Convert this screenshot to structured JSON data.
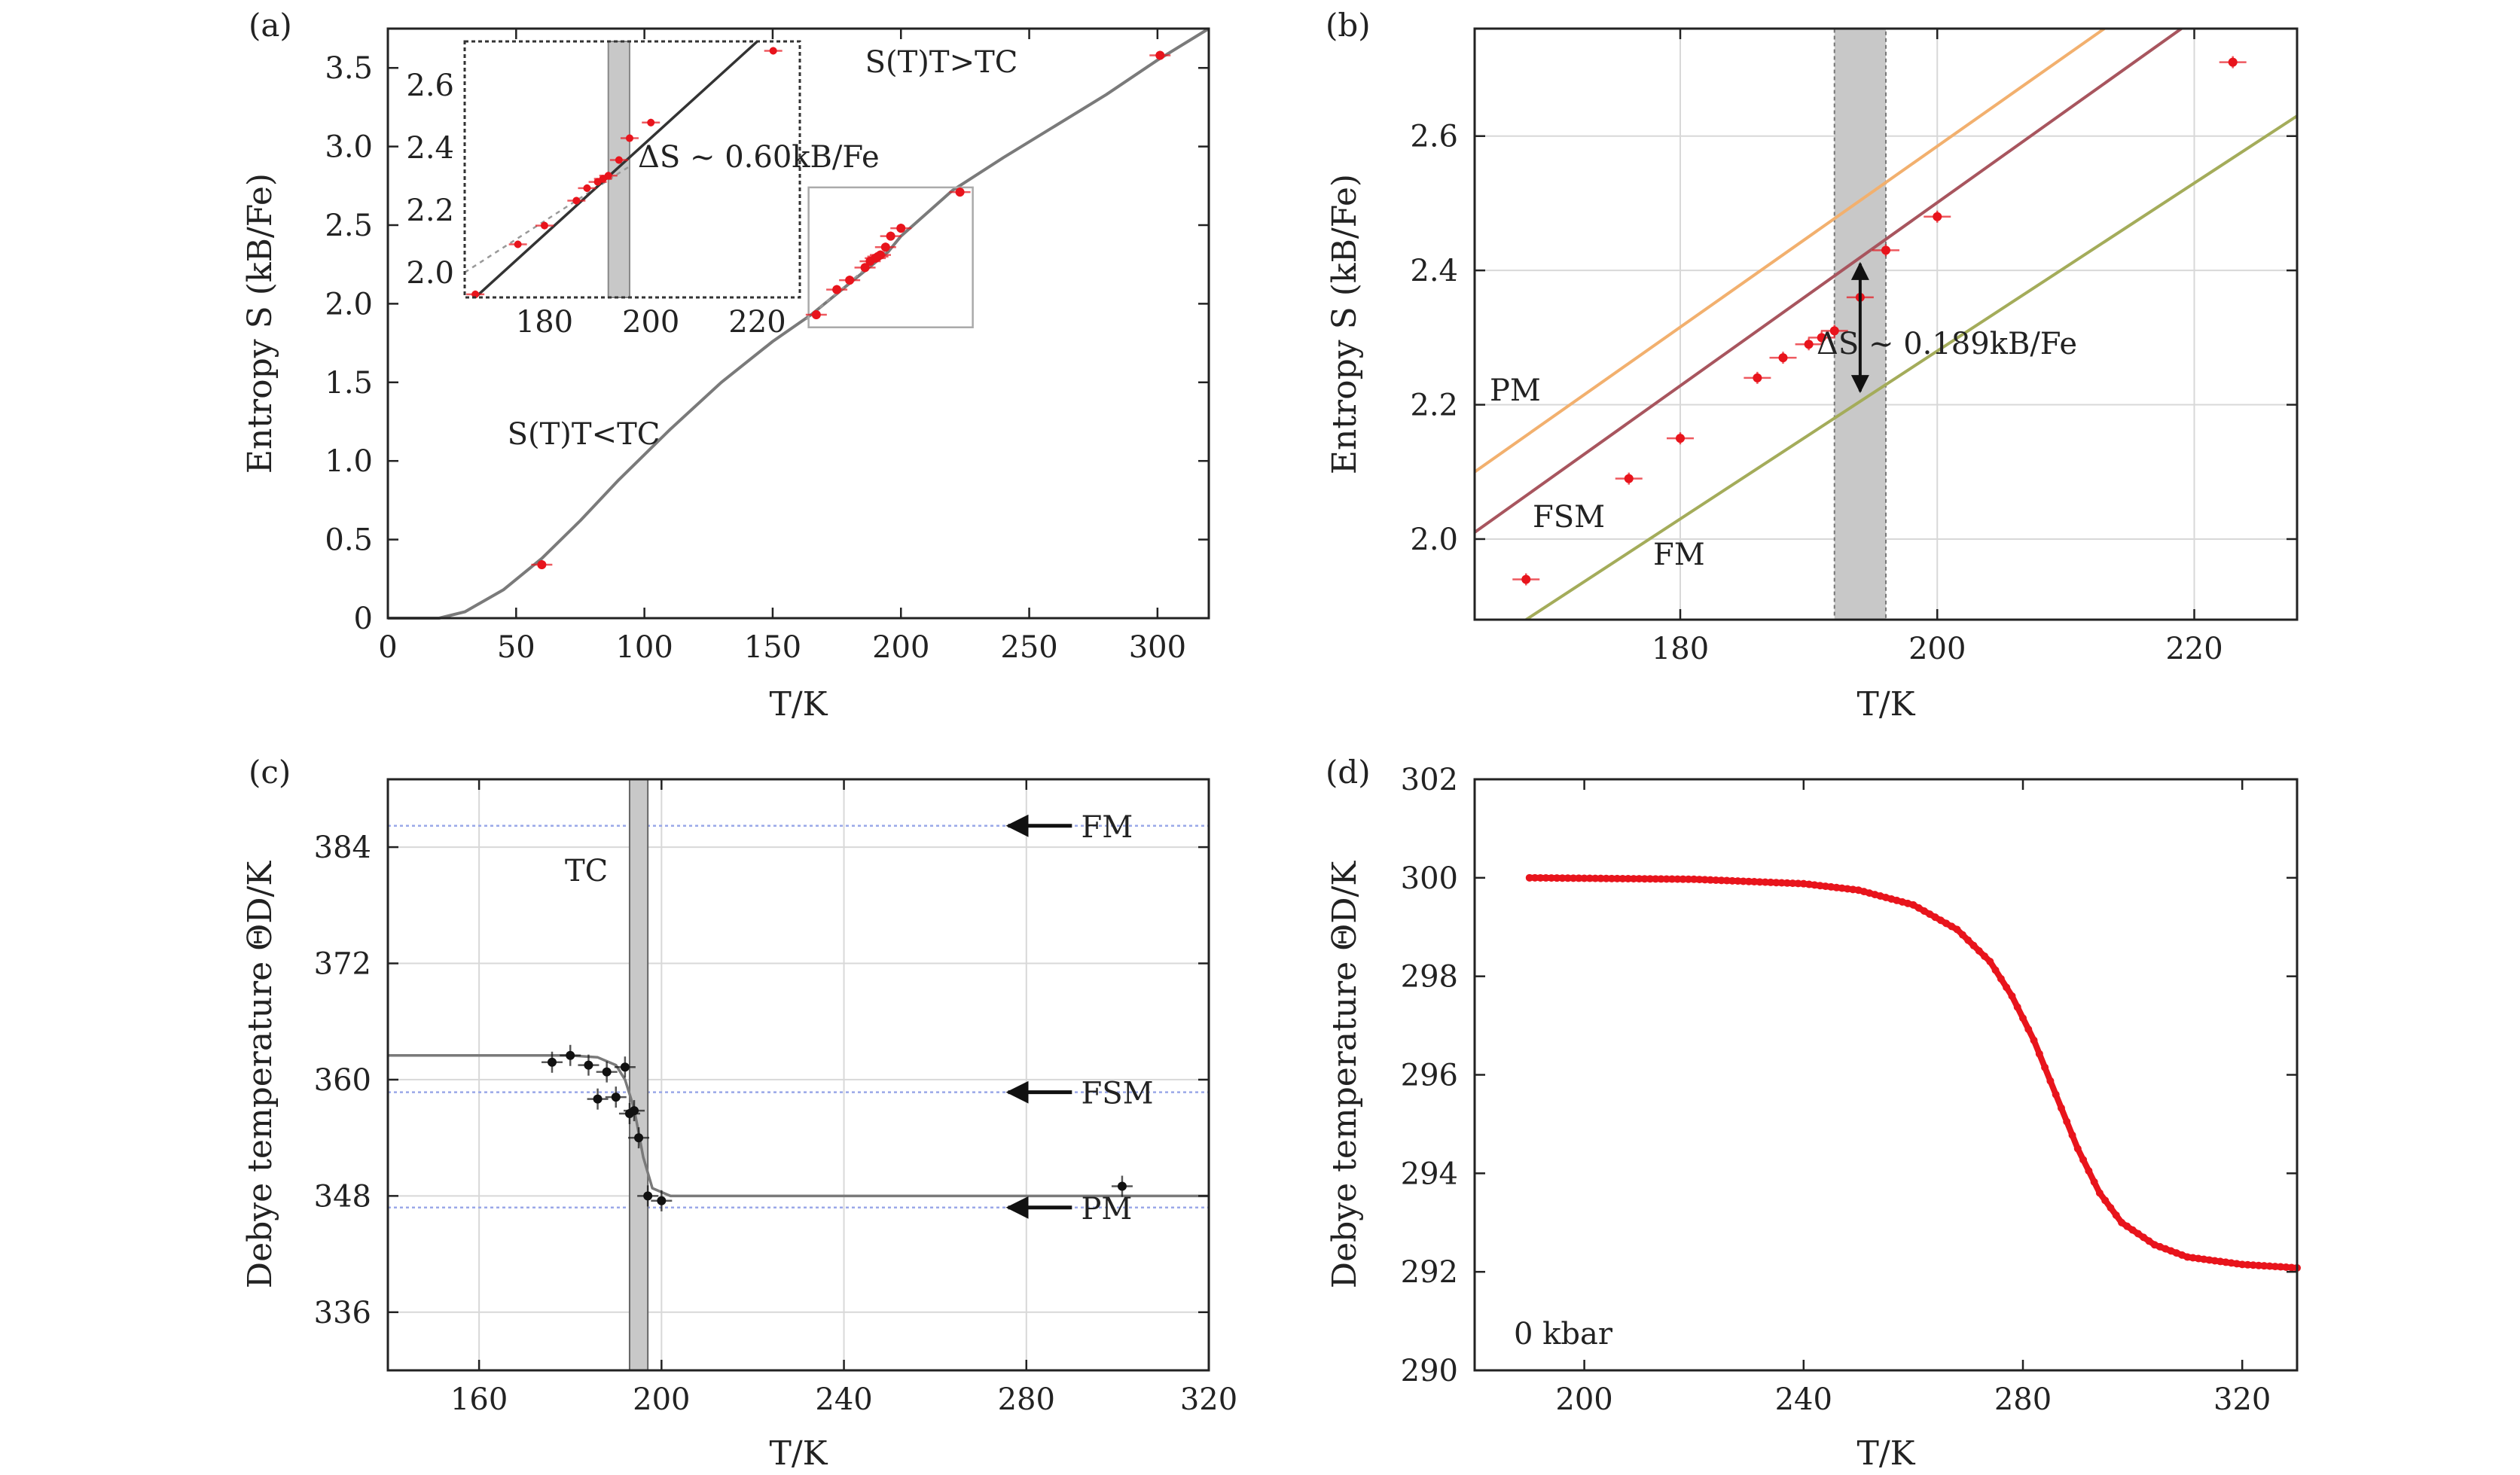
{
  "chart_data": [
    {
      "panel": "(a)",
      "type": "line",
      "xlabel": "T/K",
      "ylabel": "Entropy S (kB/Fe)",
      "xlim": [
        0,
        320
      ],
      "ylim": [
        0,
        3.75
      ],
      "xticks": [
        "0",
        "50",
        "100",
        "150",
        "200",
        "250",
        "300"
      ],
      "yticks": [
        "0",
        "0.5",
        "1.0",
        "1.5",
        "2.0",
        "2.5",
        "3.0",
        "3.5"
      ],
      "series": [
        {
          "values": [
            [
              0,
              0
            ],
            [
              20,
              0.0
            ],
            [
              30,
              0.04
            ],
            [
              45,
              0.18
            ],
            [
              60,
              0.38
            ],
            [
              75,
              0.62
            ],
            [
              90,
              0.88
            ],
            [
              110,
              1.2
            ],
            [
              130,
              1.5
            ],
            [
              150,
              1.76
            ],
            [
              165,
              1.93
            ],
            [
              180,
              2.13
            ],
            [
              195,
              2.33
            ],
            [
              200,
              2.43
            ],
            [
              220,
              2.72
            ],
            [
              240,
              2.93
            ],
            [
              260,
              3.13
            ],
            [
              280,
              3.33
            ],
            [
              300,
              3.55
            ],
            [
              320,
              3.75
            ]
          ]
        }
      ],
      "points": [
        [
          60,
          0.34
        ],
        [
          167,
          1.93
        ],
        [
          175,
          2.09
        ],
        [
          180,
          2.15
        ],
        [
          186,
          2.23
        ],
        [
          188,
          2.27
        ],
        [
          190,
          2.29
        ],
        [
          191,
          2.3
        ],
        [
          192,
          2.31
        ],
        [
          194,
          2.36
        ],
        [
          196,
          2.43
        ],
        [
          200,
          2.48
        ],
        [
          223,
          2.71
        ],
        [
          301,
          3.58
        ]
      ],
      "annotations": [
        "S(T)T>TC",
        "S(T)T<TC"
      ],
      "inset": {
        "xlim": [
          165,
          228
        ],
        "ylim": [
          1.92,
          2.74
        ],
        "xticks": [
          "180",
          "200",
          "220"
        ],
        "yticks": [
          "2.0",
          "2.2",
          "2.4",
          "2.6"
        ],
        "annotation": "ΔS ~ 0.60kB/Fe",
        "band": [
          192,
          196
        ]
      }
    },
    {
      "panel": "(b)",
      "type": "line",
      "xlabel": "T/K",
      "ylabel": "Entropy S (kB/Fe)",
      "xlim": [
        164,
        228
      ],
      "ylim": [
        1.88,
        2.76
      ],
      "xticks": [
        "180",
        "200",
        "220"
      ],
      "yticks": [
        "2.0",
        "2.2",
        "2.4",
        "2.6"
      ],
      "series": [
        {
          "name": "PM",
          "color": "#f2b06e",
          "values": [
            [
              164,
              2.1
            ],
            [
              213,
              2.76
            ]
          ]
        },
        {
          "name": "FSM",
          "color": "#a8555e",
          "values": [
            [
              164,
              2.01
            ],
            [
              219,
              2.76
            ]
          ]
        },
        {
          "name": "FM",
          "color": "#a4ac5a",
          "values": [
            [
              168,
              1.88
            ],
            [
              228,
              2.63
            ]
          ]
        }
      ],
      "points": [
        [
          168,
          1.94
        ],
        [
          176,
          2.09
        ],
        [
          180,
          2.15
        ],
        [
          186,
          2.24
        ],
        [
          188,
          2.27
        ],
        [
          190,
          2.29
        ],
        [
          191,
          2.3
        ],
        [
          192,
          2.31
        ],
        [
          194,
          2.36
        ],
        [
          196,
          2.43
        ],
        [
          200,
          2.48
        ],
        [
          223,
          2.71
        ]
      ],
      "band": [
        192,
        196
      ],
      "arrow": [
        2.22,
        2.41
      ],
      "annotation": "ΔS ~ 0.189kB/Fe"
    },
    {
      "panel": "(c)",
      "type": "line",
      "xlabel": "T/K",
      "ylabel": "Debye temperature ΘD/K",
      "xlim": [
        140,
        320
      ],
      "ylim": [
        330,
        391
      ],
      "xticks": [
        "160",
        "200",
        "240",
        "280",
        "320"
      ],
      "yticks": [
        "336",
        "348",
        "360",
        "372",
        "384"
      ],
      "series": [
        {
          "values": [
            [
              140,
              362.5
            ],
            [
              180,
              362.5
            ],
            [
              186,
              362.3
            ],
            [
              190,
              361.5
            ],
            [
              192,
              360
            ],
            [
              194,
              357
            ],
            [
              196,
              352
            ],
            [
              198,
              348.8
            ],
            [
              202,
              348
            ],
            [
              320,
              348
            ]
          ]
        }
      ],
      "points": [
        [
          176,
          361.8
        ],
        [
          180,
          362.5
        ],
        [
          184,
          361.5
        ],
        [
          186,
          358
        ],
        [
          188,
          360.8
        ],
        [
          190,
          358.2
        ],
        [
          192,
          361.3
        ],
        [
          193,
          356.5
        ],
        [
          194,
          356.8
        ],
        [
          195,
          354
        ],
        [
          197,
          348
        ],
        [
          200,
          347.5
        ],
        [
          301,
          349
        ]
      ],
      "references": [
        {
          "label": "FM",
          "value": 386.2
        },
        {
          "label": "FSM",
          "value": 358.7
        },
        {
          "label": "PM",
          "value": 346.8
        }
      ],
      "band_label": "TC",
      "band": [
        193,
        197
      ]
    },
    {
      "panel": "(d)",
      "type": "line",
      "xlabel": "T/K",
      "ylabel": "Debye temperature ΘD/K",
      "xlim": [
        180,
        330
      ],
      "ylim": [
        290,
        302
      ],
      "xticks": [
        "200",
        "240",
        "280",
        "320"
      ],
      "yticks": [
        "290",
        "292",
        "294",
        "296",
        "298",
        "300",
        "302"
      ],
      "series": [
        {
          "color": "#e8141c",
          "values": [
            [
              190,
              300.0
            ],
            [
              220,
              299.97
            ],
            [
              240,
              299.88
            ],
            [
              250,
              299.75
            ],
            [
              260,
              299.45
            ],
            [
              268,
              298.95
            ],
            [
              274,
              298.3
            ],
            [
              278,
              297.6
            ],
            [
              282,
              296.7
            ],
            [
              286,
              295.6
            ],
            [
              290,
              294.5
            ],
            [
              294,
              293.6
            ],
            [
              298,
              293.0
            ],
            [
              304,
              292.55
            ],
            [
              310,
              292.3
            ],
            [
              320,
              292.15
            ],
            [
              330,
              292.08
            ]
          ]
        }
      ],
      "annotation": "0 kbar"
    }
  ]
}
